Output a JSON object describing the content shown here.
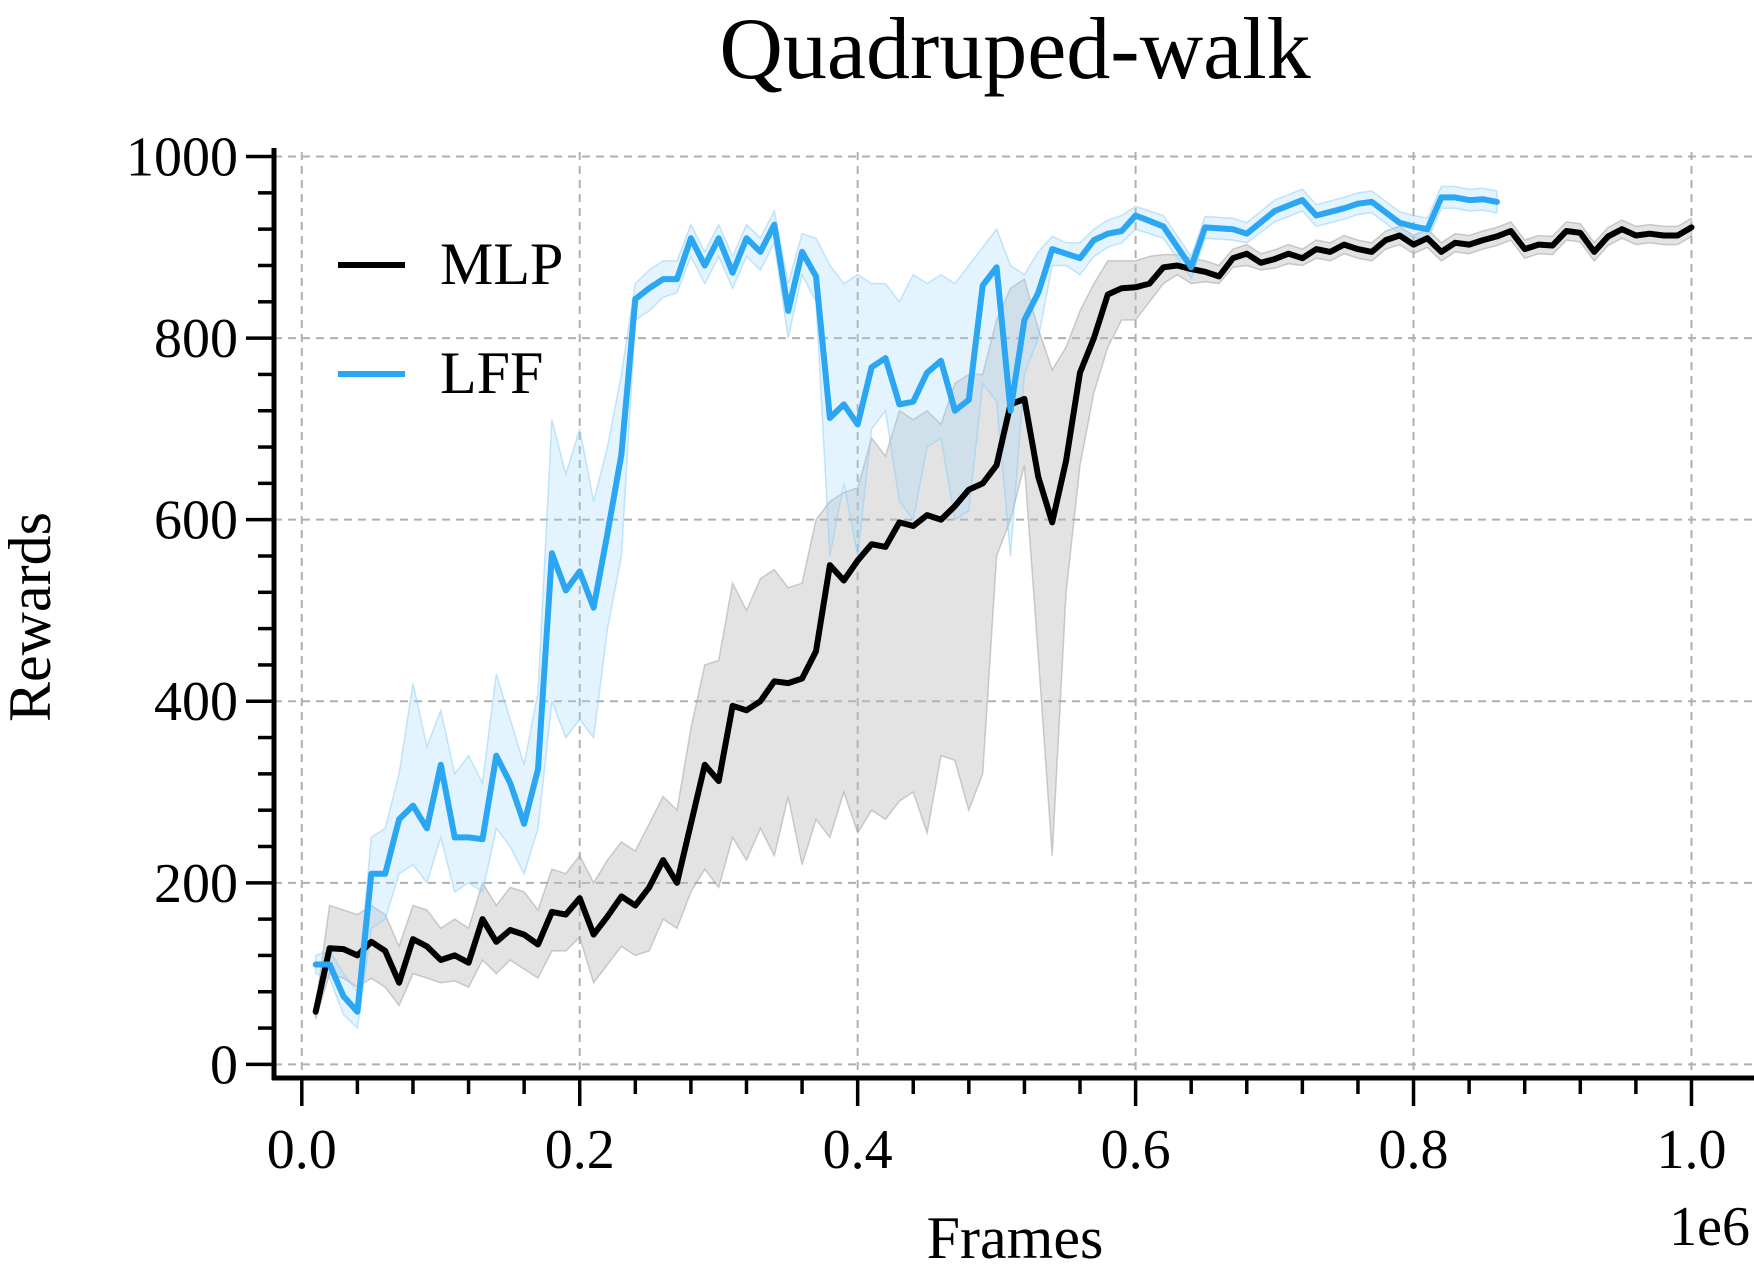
{
  "chart_data": {
    "type": "line",
    "title": "Quadruped-walk",
    "xlabel": "Frames",
    "ylabel": "Rewards",
    "x_offset_label": "1e6",
    "xlim": [
      -0.02,
      1.045
    ],
    "ylim": [
      -15,
      1005
    ],
    "x_ticks": [
      0.0,
      0.2,
      0.4,
      0.6,
      0.8,
      1.0
    ],
    "x_tick_labels": [
      "0.0",
      "0.2",
      "0.4",
      "0.6",
      "0.8",
      "1.0"
    ],
    "y_ticks": [
      0,
      200,
      400,
      600,
      800,
      1000
    ],
    "y_tick_labels": [
      "0",
      "200",
      "400",
      "600",
      "800",
      "1000"
    ],
    "grid": true,
    "legend_position": "upper-left",
    "series": [
      {
        "name": "MLP",
        "color": "#000000",
        "x": [
          0.01,
          0.02,
          0.03,
          0.04,
          0.05,
          0.06,
          0.07,
          0.08,
          0.09,
          0.1,
          0.11,
          0.12,
          0.13,
          0.14,
          0.15,
          0.16,
          0.17,
          0.18,
          0.19,
          0.2,
          0.21,
          0.22,
          0.23,
          0.24,
          0.25,
          0.26,
          0.27,
          0.28,
          0.29,
          0.3,
          0.31,
          0.32,
          0.33,
          0.34,
          0.35,
          0.36,
          0.37,
          0.38,
          0.39,
          0.4,
          0.41,
          0.42,
          0.43,
          0.44,
          0.45,
          0.46,
          0.47,
          0.48,
          0.49,
          0.5,
          0.51,
          0.52,
          0.53,
          0.54,
          0.55,
          0.56,
          0.57,
          0.58,
          0.59,
          0.6,
          0.61,
          0.62,
          0.63,
          0.64,
          0.65,
          0.66,
          0.67,
          0.68,
          0.69,
          0.7,
          0.71,
          0.72,
          0.73,
          0.74,
          0.75,
          0.76,
          0.77,
          0.78,
          0.79,
          0.8,
          0.81,
          0.82,
          0.83,
          0.84,
          0.85,
          0.86,
          0.87,
          0.88,
          0.89,
          0.9,
          0.91,
          0.92,
          0.93,
          0.94,
          0.95,
          0.96,
          0.97,
          0.98,
          0.99,
          1.0
        ],
        "values": [
          58,
          128,
          127,
          120,
          135,
          125,
          90,
          138,
          130,
          115,
          120,
          112,
          160,
          135,
          148,
          143,
          132,
          168,
          165,
          183,
          143,
          163,
          185,
          175,
          195,
          225,
          200,
          265,
          330,
          312,
          395,
          390,
          400,
          422,
          420,
          425,
          455,
          550,
          533,
          555,
          573,
          570,
          597,
          593,
          605,
          600,
          615,
          633,
          640,
          660,
          727,
          733,
          647,
          597,
          665,
          762,
          800,
          848,
          855,
          856,
          860,
          878,
          880,
          876,
          873,
          868,
          888,
          893,
          883,
          887,
          893,
          888,
          898,
          895,
          903,
          898,
          895,
          908,
          913,
          903,
          910,
          895,
          905,
          903,
          908,
          912,
          918,
          898,
          903,
          902,
          918,
          916,
          895,
          912,
          920,
          913,
          915,
          913,
          913,
          922
        ],
        "band_low": [
          50,
          100,
          95,
          85,
          95,
          85,
          65,
          100,
          95,
          90,
          92,
          85,
          115,
          100,
          115,
          105,
          95,
          125,
          125,
          140,
          90,
          110,
          130,
          120,
          125,
          160,
          150,
          190,
          215,
          195,
          250,
          225,
          260,
          230,
          295,
          220,
          270,
          250,
          300,
          255,
          280,
          270,
          290,
          300,
          255,
          340,
          335,
          280,
          320,
          560,
          600,
          660,
          450,
          230,
          520,
          660,
          740,
          790,
          820,
          820,
          840,
          860,
          870,
          860,
          862,
          860,
          878,
          880,
          875,
          877,
          882,
          880,
          888,
          885,
          893,
          888,
          885,
          898,
          903,
          893,
          900,
          885,
          895,
          893,
          898,
          902,
          908,
          888,
          893,
          892,
          908,
          906,
          885,
          902,
          910,
          903,
          905,
          903,
          903,
          912
        ],
        "band_high": [
          65,
          175,
          170,
          165,
          175,
          165,
          130,
          175,
          170,
          150,
          160,
          150,
          200,
          175,
          195,
          190,
          170,
          215,
          210,
          230,
          200,
          225,
          245,
          235,
          265,
          295,
          280,
          370,
          440,
          445,
          530,
          500,
          535,
          545,
          525,
          530,
          600,
          620,
          630,
          635,
          690,
          670,
          720,
          710,
          720,
          705,
          750,
          760,
          760,
          820,
          855,
          865,
          810,
          765,
          790,
          830,
          860,
          885,
          885,
          885,
          890,
          892,
          892,
          888,
          885,
          880,
          898,
          903,
          893,
          897,
          903,
          898,
          908,
          905,
          913,
          908,
          905,
          918,
          923,
          913,
          920,
          905,
          915,
          913,
          918,
          922,
          928,
          908,
          913,
          912,
          928,
          926,
          905,
          922,
          930,
          923,
          925,
          923,
          923,
          932
        ]
      },
      {
        "name": "LFF",
        "color": "#2aa6f2",
        "x": [
          0.01,
          0.02,
          0.03,
          0.04,
          0.05,
          0.06,
          0.07,
          0.08,
          0.09,
          0.1,
          0.11,
          0.12,
          0.13,
          0.14,
          0.15,
          0.16,
          0.17,
          0.18,
          0.19,
          0.2,
          0.21,
          0.22,
          0.23,
          0.24,
          0.25,
          0.26,
          0.27,
          0.28,
          0.29,
          0.3,
          0.31,
          0.32,
          0.33,
          0.34,
          0.35,
          0.36,
          0.37,
          0.38,
          0.39,
          0.4,
          0.41,
          0.42,
          0.43,
          0.44,
          0.45,
          0.46,
          0.47,
          0.48,
          0.49,
          0.5,
          0.51,
          0.52,
          0.53,
          0.54,
          0.55,
          0.56,
          0.57,
          0.58,
          0.59,
          0.6,
          0.62,
          0.64,
          0.65,
          0.67,
          0.68,
          0.7,
          0.72,
          0.73,
          0.75,
          0.76,
          0.77,
          0.79,
          0.8,
          0.81,
          0.82,
          0.83,
          0.84,
          0.85,
          0.86
        ],
        "values": [
          110,
          110,
          75,
          58,
          210,
          210,
          270,
          285,
          260,
          330,
          250,
          250,
          248,
          340,
          310,
          265,
          325,
          563,
          522,
          543,
          503,
          585,
          672,
          843,
          855,
          865,
          865,
          910,
          880,
          910,
          872,
          910,
          895,
          925,
          830,
          895,
          868,
          712,
          727,
          705,
          768,
          778,
          727,
          730,
          762,
          775,
          720,
          732,
          858,
          878,
          720,
          820,
          850,
          898,
          893,
          888,
          908,
          915,
          918,
          935,
          923,
          878,
          922,
          920,
          915,
          940,
          952,
          935,
          943,
          948,
          950,
          927,
          923,
          920,
          955,
          955,
          952,
          953,
          950
        ],
        "band_low": [
          100,
          95,
          55,
          40,
          150,
          160,
          210,
          220,
          200,
          250,
          190,
          200,
          190,
          260,
          240,
          210,
          260,
          400,
          360,
          380,
          360,
          480,
          560,
          820,
          830,
          845,
          850,
          890,
          860,
          890,
          855,
          890,
          875,
          905,
          800,
          870,
          840,
          560,
          640,
          560,
          700,
          720,
          620,
          600,
          680,
          690,
          600,
          610,
          750,
          730,
          560,
          760,
          800,
          880,
          880,
          870,
          890,
          900,
          905,
          920,
          910,
          866,
          910,
          908,
          905,
          928,
          940,
          923,
          931,
          936,
          938,
          915,
          911,
          908,
          943,
          943,
          940,
          941,
          938
        ],
        "band_high": [
          120,
          125,
          100,
          80,
          250,
          260,
          320,
          420,
          350,
          390,
          320,
          340,
          310,
          430,
          380,
          330,
          410,
          710,
          650,
          700,
          620,
          680,
          760,
          860,
          875,
          885,
          885,
          925,
          895,
          925,
          890,
          925,
          910,
          940,
          860,
          915,
          910,
          880,
          860,
          870,
          860,
          860,
          840,
          870,
          860,
          870,
          860,
          880,
          900,
          920,
          880,
          870,
          895,
          912,
          905,
          905,
          920,
          930,
          935,
          945,
          935,
          890,
          934,
          932,
          927,
          952,
          964,
          947,
          955,
          960,
          962,
          939,
          935,
          932,
          967,
          967,
          964,
          965,
          962
        ]
      }
    ]
  }
}
